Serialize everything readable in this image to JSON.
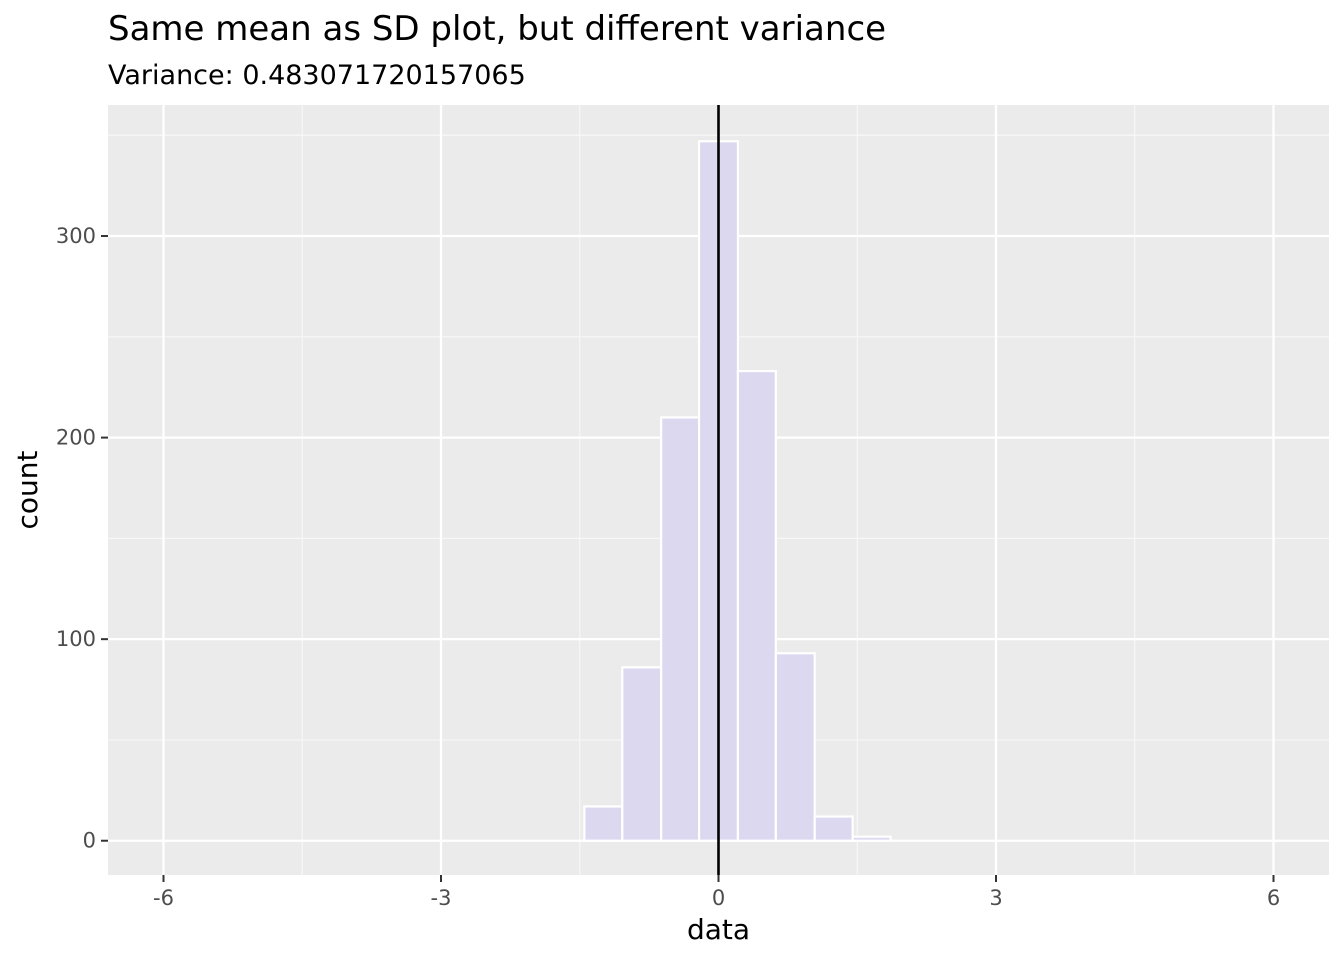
{
  "chart_data": {
    "type": "bar",
    "title": "Same mean as SD plot, but different variance",
    "subtitle": "Variance: 0.483071720157065",
    "xlabel": "data",
    "ylabel": "count",
    "xlim": [
      -6.6,
      6.6
    ],
    "ylim": [
      -17,
      365
    ],
    "x_ticks": [
      -6,
      -3,
      0,
      3,
      6
    ],
    "x_tick_labels": [
      "-6",
      "-3",
      "0",
      "3",
      "6"
    ],
    "x_minor_ticks": [
      -4.5,
      -1.5,
      1.5,
      4.5
    ],
    "y_ticks": [
      0,
      100,
      200,
      300
    ],
    "y_tick_labels": [
      "0",
      "100",
      "200",
      "300"
    ],
    "y_minor_ticks": [
      50,
      150,
      250,
      350
    ],
    "bins": [
      {
        "x0": -1.45,
        "x1": -1.04,
        "count": 17
      },
      {
        "x0": -1.04,
        "x1": -0.62,
        "count": 86
      },
      {
        "x0": -0.62,
        "x1": -0.21,
        "count": 210
      },
      {
        "x0": -0.21,
        "x1": 0.21,
        "count": 347
      },
      {
        "x0": 0.21,
        "x1": 0.62,
        "count": 233
      },
      {
        "x0": 0.62,
        "x1": 1.04,
        "count": 93
      },
      {
        "x0": 1.04,
        "x1": 1.45,
        "count": 12
      },
      {
        "x0": 1.45,
        "x1": 1.86,
        "count": 2
      }
    ],
    "vline_x": 0,
    "grid": true,
    "colors": {
      "panel_bg": "#ebebeb",
      "grid_major": "#ffffff",
      "grid_minor": "#f7f7f7",
      "bar_fill": "#dcd8ef",
      "bar_stroke": "#ffffff",
      "vline": "#000000",
      "tick": "#333333"
    }
  }
}
